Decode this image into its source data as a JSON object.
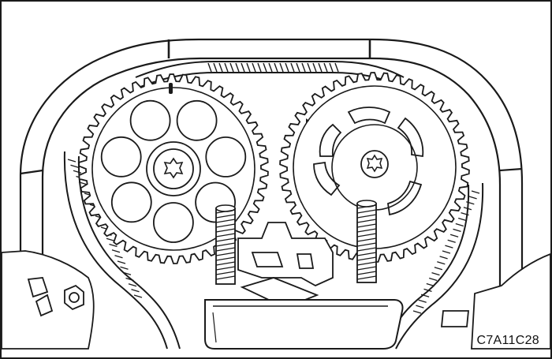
{
  "figure": {
    "reference_code": "C7A11C28",
    "colors": {
      "line": "#1a1a1a",
      "fill": "#ffffff",
      "shade": "#e6e6e6"
    },
    "gears": [
      {
        "name": "left-camshaft-sprocket",
        "teeth": 46,
        "style": "spoked-holes"
      },
      {
        "name": "right-camshaft-sprocket",
        "teeth": 46,
        "style": "curved-slots"
      }
    ],
    "timing_marks": [
      "left-sprocket-mark",
      "cover-mark-left",
      "cover-mark-right"
    ]
  }
}
